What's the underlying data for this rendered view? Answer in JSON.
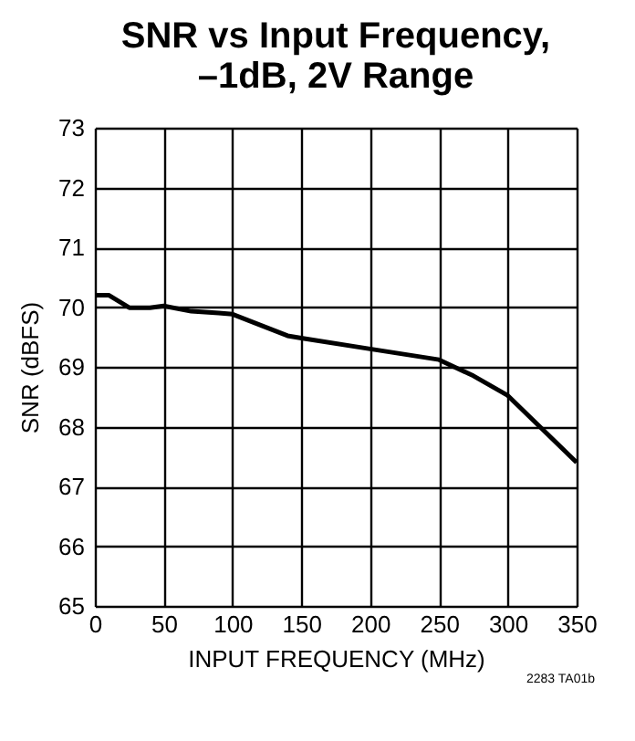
{
  "chart_data": {
    "type": "line",
    "title": "SNR vs Input Frequency,\n–1dB, 2V Range",
    "xlabel": "INPUT FREQUENCY (MHz)",
    "ylabel": "SNR (dBFS)",
    "x": [
      0,
      10,
      25,
      40,
      50,
      70,
      90,
      100,
      120,
      140,
      150,
      200,
      250,
      275,
      300,
      350
    ],
    "series": [
      {
        "color": "#000000",
        "values": [
          70.2,
          70.2,
          69.99,
          69.99,
          70.02,
          69.93,
          69.9,
          69.88,
          69.7,
          69.52,
          69.48,
          69.3,
          69.12,
          68.85,
          68.52,
          67.4
        ]
      }
    ],
    "xlim": [
      0,
      350
    ],
    "xticks": [
      0,
      50,
      100,
      150,
      200,
      250,
      300,
      350
    ],
    "ylim": [
      65,
      73
    ],
    "yticks": [
      65,
      66,
      67,
      68,
      69,
      70,
      71,
      72,
      73
    ],
    "grid": true,
    "legend": false,
    "annotations": [
      "2283 TA01b"
    ]
  }
}
